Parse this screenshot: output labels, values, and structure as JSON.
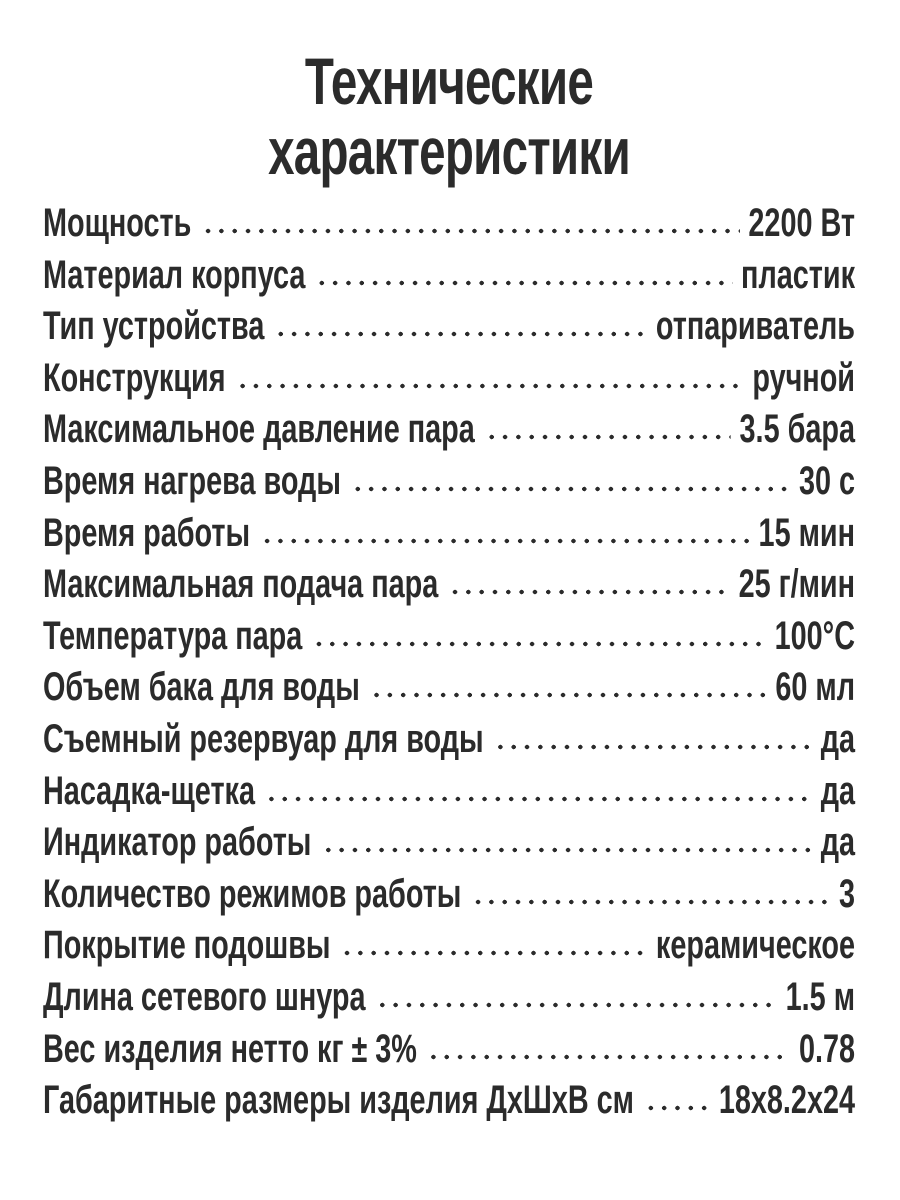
{
  "colors": {
    "text": "#2b2b2b",
    "background": "#ffffff"
  },
  "header": {
    "title_line1": "Технические",
    "title_line2": "характеристики"
  },
  "specs": [
    {
      "label": "Мощность",
      "value": "2200 Вт"
    },
    {
      "label": "Материал корпуса",
      "value": "пластик"
    },
    {
      "label": "Тип устройства",
      "value": "отпариватель"
    },
    {
      "label": "Конструкция",
      "value": "ручной"
    },
    {
      "label": "Максимальное давление пара",
      "value": "3.5 бара"
    },
    {
      "label": "Время нагрева воды",
      "value": "30 с"
    },
    {
      "label": "Время работы",
      "value": "15 мин"
    },
    {
      "label": "Максимальная подача пара",
      "value": "25 г/мин"
    },
    {
      "label": "Температура пара",
      "value": "100°C"
    },
    {
      "label": "Объем бака для воды",
      "value": "60 мл"
    },
    {
      "label": "Съемный резервуар для воды",
      "value": "да"
    },
    {
      "label": "Насадка-щетка",
      "value": "да"
    },
    {
      "label": "Индикатор работы",
      "value": "да"
    },
    {
      "label": "Количество режимов работы",
      "value": "3"
    },
    {
      "label": "Покрытие подошвы",
      "value": "керамическое"
    },
    {
      "label": "Длина сетевого шнура",
      "value": "1.5 м"
    },
    {
      "label": "Вес изделия нетто кг ± 3%",
      "value": "0.78"
    },
    {
      "label": "Габаритные размеры изделия ДхШхВ см",
      "value": "18х8.2х24"
    }
  ]
}
